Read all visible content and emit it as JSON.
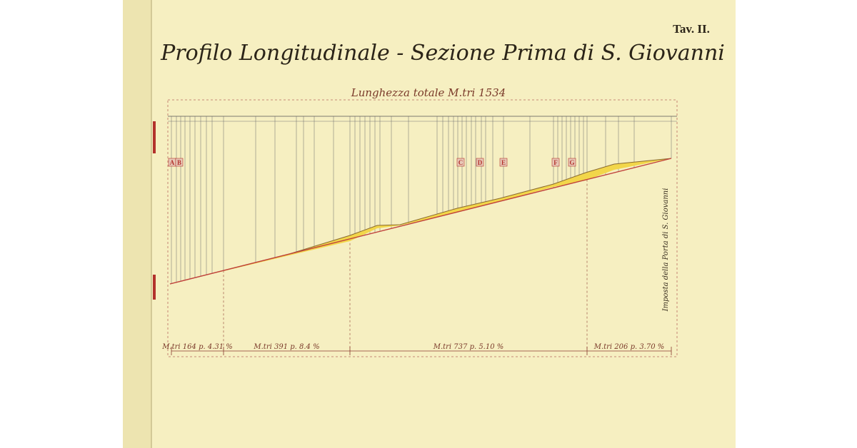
{
  "plate": "Tav. II.",
  "title": "Profilo Longitudinale - Sezione Prima di S. Giovanni",
  "subtitle": "Lunghezza totale M.tri 1534",
  "points": [
    "A",
    "B",
    "C",
    "D",
    "E",
    "F",
    "G"
  ],
  "end_note": "Imposta della Porta di S. Giovanni",
  "segments": [
    "M.tri 164 p. 4.31 %",
    "M.tri 391 p. 8.4 %",
    "M.tri 737 p. 5.10 %",
    "M.tri 206 p. 3.70 %"
  ]
}
